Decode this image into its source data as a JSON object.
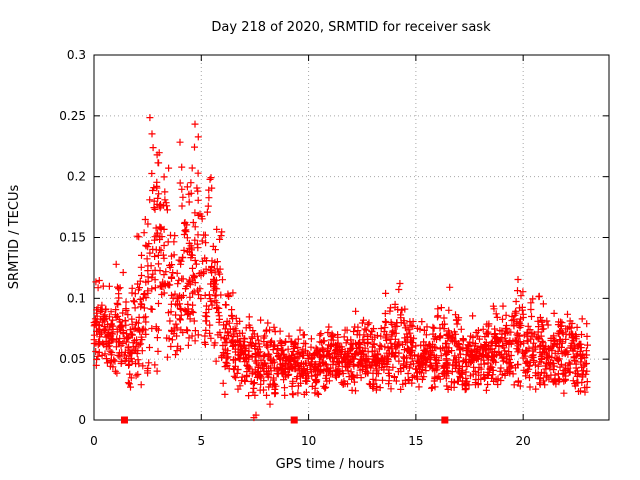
{
  "title": "Day 218 of 2020, SRMTID for receiver sask",
  "colors": {
    "marker": "#ff0000",
    "axis": "#000000",
    "grid": "#a8a8a8",
    "background": "#ffffff",
    "text": "#000000"
  },
  "chart_data": {
    "type": "scatter",
    "title": "Day 218 of 2020, SRMTID for receiver sask",
    "xlabel": "GPS time / hours",
    "ylabel": "SRMTID / TECUs",
    "xlim": [
      0,
      24
    ],
    "ylim": [
      0,
      0.3
    ],
    "xticks": [
      0,
      5,
      10,
      15,
      20
    ],
    "yticks": [
      0,
      0.05,
      0.1,
      0.15,
      0.2,
      0.25,
      0.3
    ],
    "grid": true,
    "legend": "none",
    "marker": "plus",
    "marker_color": "#ff0000",
    "marker_size_px": 7,
    "x_data_range": [
      0,
      23
    ],
    "peaks_note": "elevated activity 2.5-6h with maxima ~0.252 near 2.6h and ~0.259 near 4.5h; baseline ~0.05 after 6.5h with minor bumps near 14, 16.7, 19.8, 20.7h",
    "density_bins": [
      [
        0.0,
        0.5,
        55,
        0.078,
        0.015,
        0.04,
        0.115
      ],
      [
        0.5,
        1.0,
        50,
        0.072,
        0.018,
        0.035,
        0.12
      ],
      [
        1.0,
        1.5,
        50,
        0.08,
        0.022,
        0.035,
        0.145
      ],
      [
        1.5,
        2.0,
        50,
        0.068,
        0.02,
        0.028,
        0.12
      ],
      [
        2.0,
        2.5,
        50,
        0.085,
        0.032,
        0.035,
        0.2
      ],
      [
        2.5,
        3.0,
        55,
        0.12,
        0.05,
        0.04,
        0.252
      ],
      [
        3.0,
        3.5,
        50,
        0.115,
        0.045,
        0.04,
        0.225
      ],
      [
        3.5,
        4.0,
        45,
        0.1,
        0.035,
        0.045,
        0.185
      ],
      [
        4.0,
        4.5,
        55,
        0.13,
        0.05,
        0.05,
        0.245
      ],
      [
        4.5,
        5.0,
        50,
        0.135,
        0.048,
        0.05,
        0.259
      ],
      [
        5.0,
        5.5,
        45,
        0.12,
        0.04,
        0.05,
        0.21
      ],
      [
        5.5,
        6.0,
        45,
        0.092,
        0.028,
        0.04,
        0.16
      ],
      [
        6.0,
        6.5,
        45,
        0.072,
        0.022,
        0.03,
        0.13
      ],
      [
        6.5,
        7.0,
        48,
        0.058,
        0.018,
        0.025,
        0.105
      ],
      [
        7.0,
        7.5,
        48,
        0.05,
        0.015,
        0.02,
        0.09
      ],
      [
        7.5,
        8.0,
        48,
        0.046,
        0.013,
        0.02,
        0.085
      ],
      [
        8.0,
        8.5,
        48,
        0.046,
        0.013,
        0.018,
        0.08
      ],
      [
        8.5,
        9.0,
        48,
        0.048,
        0.013,
        0.02,
        0.085
      ],
      [
        9.0,
        9.5,
        48,
        0.045,
        0.012,
        0.02,
        0.08
      ],
      [
        9.5,
        10.0,
        48,
        0.042,
        0.012,
        0.018,
        0.075
      ],
      [
        10.0,
        10.5,
        48,
        0.045,
        0.012,
        0.02,
        0.08
      ],
      [
        10.5,
        11.0,
        48,
        0.05,
        0.013,
        0.022,
        0.085
      ],
      [
        11.0,
        11.5,
        48,
        0.05,
        0.014,
        0.022,
        0.09
      ],
      [
        11.5,
        12.0,
        48,
        0.048,
        0.013,
        0.022,
        0.085
      ],
      [
        12.0,
        12.5,
        48,
        0.052,
        0.014,
        0.024,
        0.09
      ],
      [
        12.5,
        13.0,
        48,
        0.055,
        0.016,
        0.024,
        0.095
      ],
      [
        13.0,
        13.5,
        48,
        0.05,
        0.014,
        0.022,
        0.09
      ],
      [
        13.5,
        14.0,
        48,
        0.06,
        0.02,
        0.025,
        0.115
      ],
      [
        14.0,
        14.5,
        48,
        0.065,
        0.022,
        0.025,
        0.125
      ],
      [
        14.5,
        15.0,
        48,
        0.055,
        0.016,
        0.024,
        0.1
      ],
      [
        15.0,
        15.5,
        48,
        0.05,
        0.014,
        0.022,
        0.09
      ],
      [
        15.5,
        16.0,
        48,
        0.052,
        0.015,
        0.022,
        0.095
      ],
      [
        16.0,
        16.5,
        48,
        0.055,
        0.016,
        0.024,
        0.1
      ],
      [
        16.5,
        17.0,
        48,
        0.06,
        0.02,
        0.024,
        0.112
      ],
      [
        17.0,
        17.5,
        48,
        0.05,
        0.015,
        0.022,
        0.09
      ],
      [
        17.5,
        18.0,
        48,
        0.048,
        0.014,
        0.022,
        0.088
      ],
      [
        18.0,
        18.5,
        48,
        0.052,
        0.016,
        0.022,
        0.092
      ],
      [
        18.5,
        19.0,
        48,
        0.055,
        0.018,
        0.024,
        0.1
      ],
      [
        19.0,
        19.5,
        48,
        0.06,
        0.02,
        0.024,
        0.105
      ],
      [
        19.5,
        20.0,
        48,
        0.065,
        0.022,
        0.025,
        0.123
      ],
      [
        20.0,
        20.5,
        48,
        0.055,
        0.018,
        0.024,
        0.1
      ],
      [
        20.5,
        21.0,
        48,
        0.06,
        0.02,
        0.024,
        0.105
      ],
      [
        21.0,
        21.5,
        48,
        0.05,
        0.015,
        0.022,
        0.09
      ],
      [
        21.5,
        22.0,
        48,
        0.055,
        0.018,
        0.022,
        0.095
      ],
      [
        22.0,
        22.5,
        48,
        0.055,
        0.018,
        0.022,
        0.095
      ],
      [
        22.5,
        23.0,
        44,
        0.05,
        0.016,
        0.02,
        0.09
      ]
    ],
    "outliers": [
      [
        7.45,
        0.002
      ],
      [
        7.55,
        0.004
      ],
      [
        8.2,
        0.013
      ],
      [
        1.7,
        0.027
      ],
      [
        2.2,
        0.029
      ],
      [
        6.1,
        0.021
      ],
      [
        9.8,
        0.021
      ],
      [
        10.4,
        0.022
      ],
      [
        13.0,
        0.026
      ],
      [
        17.3,
        0.025
      ],
      [
        21.9,
        0.022
      ]
    ],
    "axis_markers": {
      "marker": "filled-square",
      "color": "#ff0000",
      "y": 0,
      "x": [
        1.42,
        9.33,
        16.35
      ]
    },
    "render_seed": 218
  }
}
